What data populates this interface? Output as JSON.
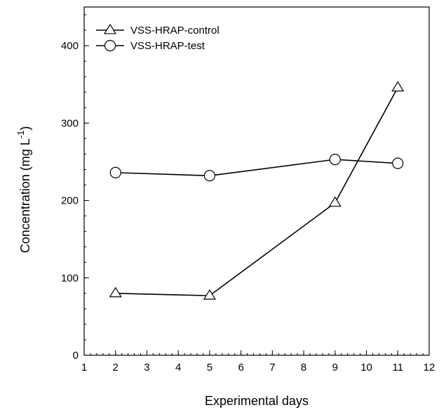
{
  "chart_data": {
    "type": "line",
    "xlabel": "Experimental days",
    "ylabel": "Concentration (mg L",
    "ylabel_superscript": "-1",
    "ylabel_close": ")",
    "xlim": [
      1,
      12
    ],
    "ylim": [
      0,
      450
    ],
    "x_ticks": [
      1,
      2,
      3,
      4,
      5,
      6,
      7,
      8,
      9,
      10,
      11,
      12
    ],
    "x_minor_step": 0.2,
    "y_ticks": [
      0,
      100,
      200,
      300,
      400
    ],
    "y_minor_step": 20,
    "grid": false,
    "legend_position": "top-left",
    "series": [
      {
        "name": "VSS-HRAP-control",
        "marker": "triangle",
        "color": "#000000",
        "x": [
          2,
          5,
          9,
          11
        ],
        "y": [
          80,
          77,
          197,
          346
        ]
      },
      {
        "name": "VSS-HRAP-test",
        "marker": "circle",
        "color": "#000000",
        "x": [
          2,
          5,
          9,
          11
        ],
        "y": [
          236,
          232,
          253,
          248
        ]
      }
    ]
  }
}
